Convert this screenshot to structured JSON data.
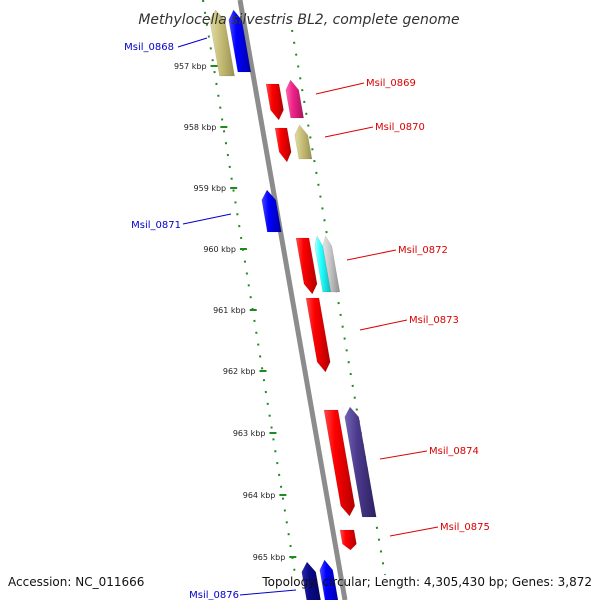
{
  "title": "Methylocella silvestris BL2, complete genome",
  "accession": "Accession: NC_011666",
  "topology": "Topology: circular; Length: 4,305,430 bp; Genes: 3,872",
  "kbp_ticks": [
    "957 kbp",
    "958 kbp",
    "959 kbp",
    "960 kbp",
    "961 kbp",
    "962 kbp",
    "963 kbp",
    "964 kbp",
    "965 kbp"
  ],
  "gene_labels": {
    "msil_0868": "Msil_0868",
    "msil_0869": "Msil_0869",
    "msil_0870": "Msil_0870",
    "msil_0871": "Msil_0871",
    "msil_0872": "Msil_0872",
    "msil_0873": "Msil_0873",
    "msil_0874": "Msil_0874",
    "msil_0875": "Msil_0875",
    "msil_0876": "Msil_0876"
  },
  "colors": {
    "backbone": "#8c8c8c",
    "tick_dots": "#1f8a1f",
    "gene_red": "#ff0000",
    "gene_blue": "#0000ff",
    "gene_navy": "#0a0a8a",
    "gene_khaki": "#c8c07a",
    "gene_magenta": "#ee2288",
    "gene_cyan": "#22ffff",
    "gene_grey": "#c8c8c8",
    "gene_purple": "#4b3a8c",
    "label_red": "#dd0000",
    "label_blue": "#0000cc"
  }
}
